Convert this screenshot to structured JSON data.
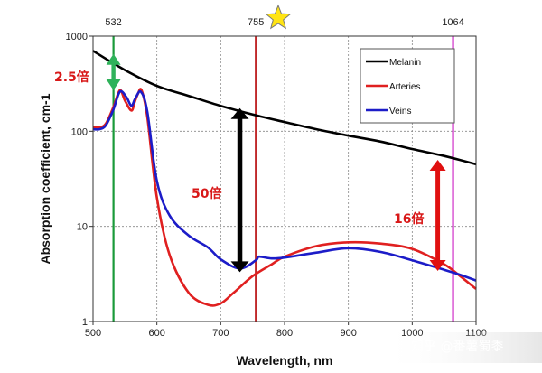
{
  "chart_data": {
    "type": "line",
    "xlabel": "Wavelength, nm",
    "ylabel": "Absorption coefficient, cm-1",
    "xlim": [
      500,
      1100
    ],
    "ylim": [
      1,
      1000
    ],
    "yscale": "log",
    "grid": true,
    "legend_position": "top-right",
    "x_ticks": [
      "500",
      "600",
      "700",
      "800",
      "900",
      "1000",
      "1100"
    ],
    "y_ticks": [
      "1",
      "10",
      "100",
      "1000"
    ],
    "series": [
      {
        "name": "Melanin",
        "color": "#000000",
        "x": [
          500,
          550,
          600,
          650,
          700,
          750,
          800,
          850,
          900,
          950,
          1000,
          1050,
          1100
        ],
        "y": [
          700,
          440,
          300,
          235,
          185,
          150,
          125,
          105,
          90,
          78,
          65,
          55,
          45
        ]
      },
      {
        "name": "Arteries",
        "color": "#e02020",
        "x": [
          500,
          510,
          520,
          532,
          542,
          550,
          560,
          565,
          570,
          576,
          585,
          600,
          620,
          650,
          680,
          700,
          720,
          750,
          780,
          800,
          850,
          900,
          950,
          1000,
          1050,
          1075,
          1100
        ],
        "y": [
          110,
          110,
          120,
          180,
          270,
          210,
          165,
          200,
          245,
          270,
          140,
          20,
          5,
          2,
          1.5,
          1.55,
          2,
          3,
          4,
          4.8,
          6.2,
          6.8,
          6.6,
          5.8,
          4,
          3,
          2.2
        ]
      },
      {
        "name": "Veins",
        "color": "#1c1cc8",
        "x": [
          500,
          510,
          520,
          532,
          542,
          552,
          560,
          566,
          575,
          585,
          600,
          620,
          650,
          680,
          700,
          730,
          755,
          760,
          780,
          800,
          850,
          900,
          950,
          1000,
          1050,
          1075,
          1100
        ],
        "y": [
          105,
          105,
          115,
          170,
          260,
          230,
          185,
          220,
          260,
          160,
          30,
          13,
          8,
          6,
          4.5,
          3.6,
          4.4,
          4.8,
          4.6,
          4.7,
          5.3,
          5.9,
          5.4,
          4.4,
          3.5,
          3.1,
          2.7
        ]
      }
    ],
    "reference_lines": [
      {
        "label": "532",
        "x": 532,
        "color": "#1a9a3a"
      },
      {
        "label": "755",
        "x": 755,
        "color": "#c0282a"
      },
      {
        "label": "1064",
        "x": 1064,
        "color": "#d030c8"
      }
    ],
    "annotations": [
      {
        "text": "2.5倍",
        "color": "#d81818"
      },
      {
        "text": "50倍",
        "color": "#cc1515"
      },
      {
        "text": "16倍",
        "color": "#cc1515"
      }
    ],
    "arrows": [
      {
        "x": 532,
        "y_from": 270,
        "y_to": 650,
        "color": "#2fb25a"
      },
      {
        "x": 730,
        "y_from": 3.3,
        "y_to": 175,
        "color": "#000000"
      },
      {
        "x": 1040,
        "y_from": 3.4,
        "y_to": 50,
        "color": "#e01010"
      }
    ]
  },
  "star": {
    "color": "#ffe414",
    "stroke": "#777777"
  },
  "watermark": "知乎 @番薯蜀黍"
}
